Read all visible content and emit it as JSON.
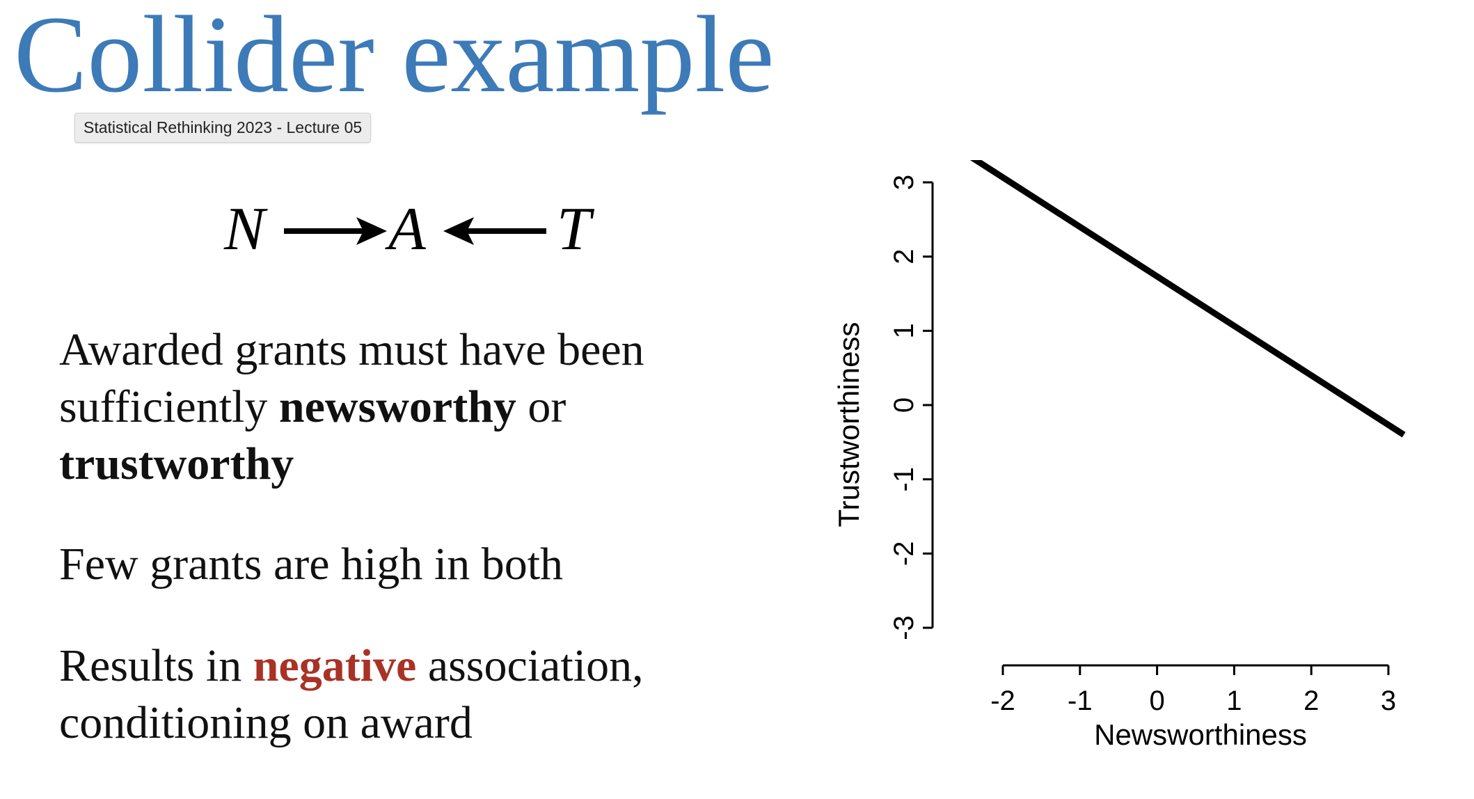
{
  "slide": {
    "title": "Collider example",
    "tag": "Statistical Rethinking 2023 - Lecture 05",
    "dag": {
      "nodes": [
        "N",
        "A",
        "T"
      ]
    },
    "para1": {
      "t1": "Awarded grants must have been sufficiently ",
      "b1": "newsworthy",
      "t2": " or ",
      "b2": "trustworthy"
    },
    "para2": "Few grants are high in both",
    "para3": {
      "t1": "Results in ",
      "neg": "negative",
      "t2": " association, conditioning on award"
    },
    "colors": {
      "title": "#3d7ab8",
      "negative": "#a93226"
    }
  },
  "chart_data": {
    "type": "line",
    "xlabel": "Newsworthiness",
    "ylabel": "Trustworthiness",
    "xlim": [
      -2,
      3
    ],
    "ylim": [
      -3,
      3
    ],
    "xticks": [
      -2,
      -1,
      0,
      1,
      2,
      3
    ],
    "yticks": [
      -3,
      -2,
      -1,
      0,
      1,
      2,
      3
    ],
    "series": [
      {
        "x": [
          -2.5,
          3.2
        ],
        "y": [
          3.4,
          -0.4
        ]
      }
    ],
    "grid": false
  }
}
